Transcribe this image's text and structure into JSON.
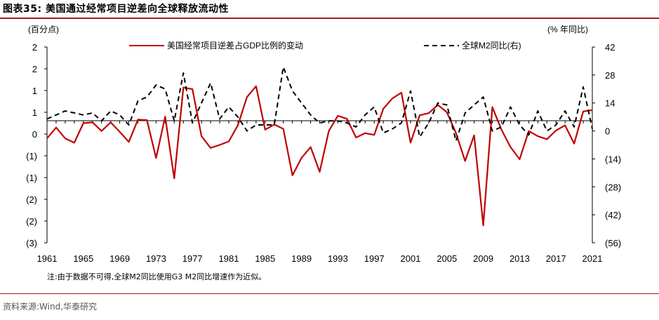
{
  "header": {
    "title": "图表35:  美国通过经常项目逆差向全球释放流动性"
  },
  "footer": {
    "note": "注:由于数据不可得,全球M2同比使用G3 M2同比增速作为近似。",
    "source": "资料来源:Wind,华泰研究"
  },
  "colors": {
    "accent": "#9b1c1c",
    "series1": "#c00000",
    "series2": "#000000"
  },
  "chart_data": {
    "type": "line",
    "left_axis_unit": "(百分点)",
    "right_axis_unit": "(% 年同比)",
    "left_tick_labels": [
      "2",
      "2",
      "1",
      "1",
      "0",
      "(1)",
      "(1)",
      "(2)",
      "(2)",
      "(3)"
    ],
    "right_tick_labels": [
      "42",
      "28",
      "14",
      "0",
      "(14)",
      "(28)",
      "(42)",
      "(56)"
    ],
    "left_ylim": [
      -2.5,
      2.0
    ],
    "right_ylim": [
      -56,
      42
    ],
    "x_tick_labels": [
      "1961",
      "1965",
      "1969",
      "1973",
      "1977",
      "1981",
      "1985",
      "1989",
      "1993",
      "1997",
      "2001",
      "2005",
      "2009",
      "2013",
      "2017",
      "2021"
    ],
    "x": [
      1961,
      1962,
      1963,
      1964,
      1965,
      1966,
      1967,
      1968,
      1969,
      1970,
      1971,
      1972,
      1973,
      1974,
      1975,
      1976,
      1977,
      1978,
      1979,
      1980,
      1981,
      1982,
      1983,
      1984,
      1985,
      1986,
      1987,
      1988,
      1989,
      1990,
      1991,
      1992,
      1993,
      1994,
      1995,
      1996,
      1997,
      1998,
      1999,
      2000,
      2001,
      2002,
      2003,
      2004,
      2005,
      2006,
      2007,
      2008,
      2009,
      2010,
      2011,
      2012,
      2013,
      2014,
      2015,
      2016,
      2017,
      2018,
      2019,
      2020,
      2021
    ],
    "series": [
      {
        "name": "美国经常项目逆差占GDP比例的变动",
        "axis": "left",
        "style": "solid",
        "values": [
          -0.1,
          0.15,
          -0.1,
          -0.2,
          0.25,
          0.27,
          0.07,
          0.27,
          0.05,
          -0.18,
          0.33,
          0.32,
          -0.55,
          0.4,
          -1.02,
          1.07,
          1.03,
          -0.05,
          -0.32,
          -0.25,
          -0.17,
          0.2,
          0.85,
          1.1,
          0.1,
          0.22,
          0.12,
          -0.95,
          -0.55,
          -0.3,
          -0.87,
          0.07,
          0.42,
          0.35,
          -0.08,
          0.02,
          -0.02,
          0.58,
          0.82,
          0.95,
          -0.2,
          0.43,
          0.48,
          0.67,
          0.5,
          0.02,
          -0.62,
          -0.03,
          -2.1,
          0.62,
          0.1,
          -0.3,
          -0.58,
          0.07,
          -0.05,
          -0.12,
          0.08,
          0.2,
          -0.22,
          0.52,
          0.55
        ]
      },
      {
        "name": "全球M2同比(右)",
        "axis": "right",
        "style": "dashed",
        "values": [
          6,
          8,
          10,
          9,
          8,
          9,
          5,
          10,
          8,
          3,
          15,
          17,
          23,
          21,
          5,
          29,
          4,
          14,
          24,
          6,
          12,
          7,
          0,
          3,
          3,
          3,
          32,
          20,
          14,
          8,
          4,
          5,
          5,
          4,
          2,
          8,
          12,
          -1,
          1,
          4,
          20,
          -3,
          4,
          14,
          13,
          -5,
          9,
          13,
          17,
          0,
          2,
          12,
          3,
          -2,
          10,
          0,
          3,
          10,
          2,
          22,
          1
        ]
      }
    ],
    "legend_position": "top"
  }
}
